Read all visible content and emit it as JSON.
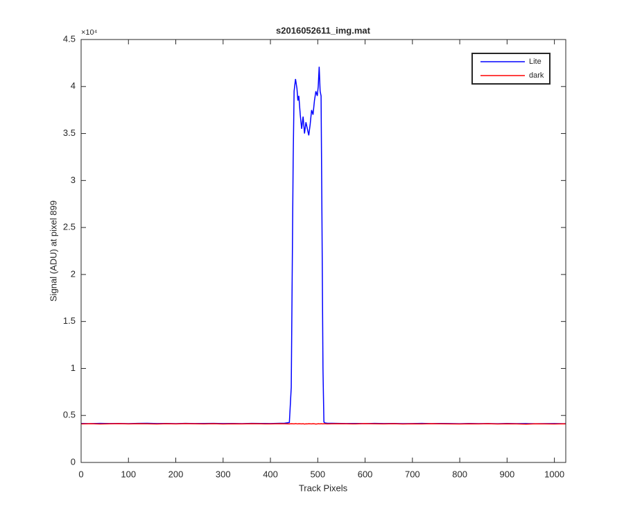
{
  "chart_data": {
    "type": "line",
    "title": "s2016052611_img.mat",
    "x_label": "Track Pixels",
    "y_label": "Signal (ADU) at pixel 899",
    "y_exponent": "×10⁴",
    "x": [
      0,
      20,
      40,
      60,
      80,
      100,
      120,
      140,
      160,
      180,
      200,
      220,
      240,
      260,
      280,
      300,
      320,
      340,
      360,
      380,
      400,
      420,
      430,
      440,
      444,
      448,
      450,
      453,
      456,
      458,
      460,
      463,
      466,
      469,
      472,
      475,
      478,
      481,
      484,
      487,
      490,
      493,
      496,
      499,
      501,
      503,
      505,
      507,
      509,
      511,
      513,
      516,
      520,
      540,
      560,
      580,
      600,
      620,
      640,
      660,
      680,
      700,
      720,
      740,
      760,
      780,
      800,
      820,
      840,
      860,
      880,
      900,
      920,
      940,
      960,
      980,
      1000,
      1020,
      1024
    ],
    "series": [
      {
        "name": "Lite",
        "color": "#0000ff",
        "values": [
          0.415,
          0.413,
          0.416,
          0.414,
          0.415,
          0.413,
          0.416,
          0.417,
          0.414,
          0.415,
          0.413,
          0.416,
          0.414,
          0.415,
          0.416,
          0.414,
          0.415,
          0.413,
          0.416,
          0.415,
          0.414,
          0.417,
          0.418,
          0.425,
          0.8,
          3.2,
          3.95,
          4.08,
          3.98,
          3.85,
          3.9,
          3.7,
          3.55,
          3.68,
          3.5,
          3.62,
          3.55,
          3.48,
          3.6,
          3.75,
          3.7,
          3.85,
          3.95,
          3.9,
          4.0,
          4.21,
          3.95,
          3.9,
          2.5,
          1.0,
          0.43,
          0.42,
          0.418,
          0.416,
          0.414,
          0.415,
          0.413,
          0.416,
          0.414,
          0.415,
          0.413,
          0.414,
          0.416,
          0.413,
          0.415,
          0.414,
          0.412,
          0.415,
          0.413,
          0.414,
          0.412,
          0.415,
          0.413,
          0.414,
          0.412,
          0.413,
          0.414,
          0.412,
          0.413
        ]
      },
      {
        "name": "dark",
        "color": "#ff0000",
        "values": [
          0.41,
          0.412,
          0.409,
          0.411,
          0.413,
          0.41,
          0.412,
          0.411,
          0.409,
          0.412,
          0.41,
          0.413,
          0.411,
          0.41,
          0.412,
          0.409,
          0.411,
          0.41,
          0.412,
          0.411,
          0.41,
          0.412,
          0.411,
          0.41,
          0.412,
          0.411,
          0.41,
          0.413,
          0.411,
          0.41,
          0.412,
          0.411,
          0.41,
          0.412,
          0.409,
          0.411,
          0.41,
          0.412,
          0.411,
          0.41,
          0.412,
          0.411,
          0.409,
          0.41,
          0.412,
          0.411,
          0.41,
          0.412,
          0.411,
          0.41,
          0.412,
          0.411,
          0.41,
          0.412,
          0.411,
          0.41,
          0.413,
          0.411,
          0.41,
          0.412,
          0.409,
          0.411,
          0.41,
          0.412,
          0.411,
          0.41,
          0.409,
          0.411,
          0.41,
          0.412,
          0.409,
          0.411,
          0.41,
          0.408,
          0.411,
          0.41,
          0.409,
          0.411,
          0.41
        ]
      }
    ],
    "xlim": [
      0,
      1024
    ],
    "xticks": [
      0,
      100,
      200,
      300,
      400,
      500,
      600,
      700,
      800,
      900,
      1000
    ],
    "ylim": [
      0,
      4.5
    ],
    "yticks": [
      0,
      0.5,
      1,
      1.5,
      2,
      2.5,
      3,
      3.5,
      4,
      4.5
    ],
    "legend": "northeast"
  }
}
